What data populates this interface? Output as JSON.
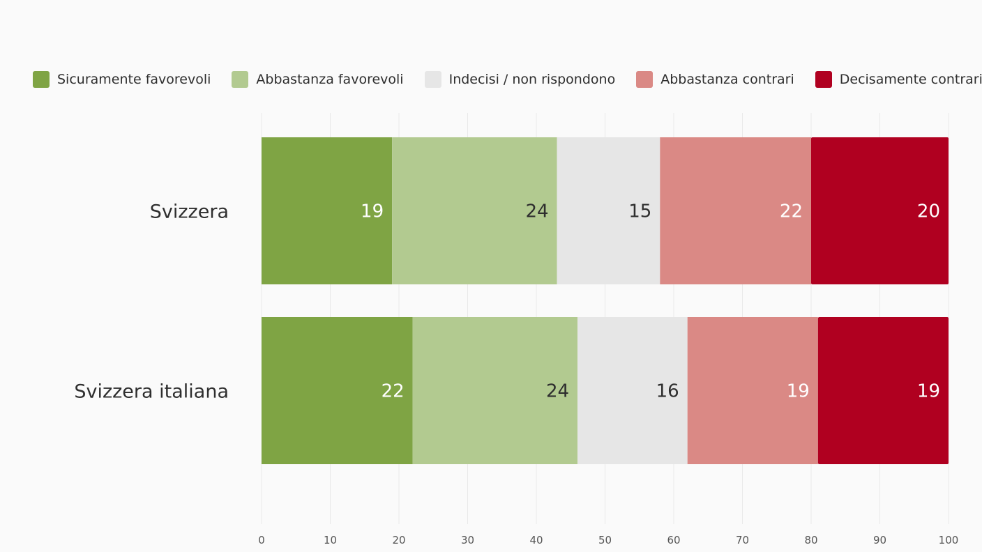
{
  "chart_data": {
    "type": "bar",
    "orientation": "horizontal",
    "stacked": true,
    "categories": [
      "Svizzera",
      "Svizzera italiana"
    ],
    "series": [
      {
        "name": "Sicuramente favorevoli",
        "color": "#7fa444",
        "label_color": "#ffffff",
        "values": [
          19,
          22
        ]
      },
      {
        "name": "Abbastanza favorevoli",
        "color": "#b2ca90",
        "label_color": "#2e2e2e",
        "values": [
          24,
          24
        ]
      },
      {
        "name": "Indecisi / non rispondono",
        "color": "#e6e6e6",
        "label_color": "#2e2e2e",
        "values": [
          15,
          16
        ]
      },
      {
        "name": "Abbastanza contrari",
        "color": "#da8985",
        "label_color": "#ffffff",
        "values": [
          22,
          19
        ]
      },
      {
        "name": "Decisamente contrari",
        "color": "#b00020",
        "label_color": "#ffffff",
        "values": [
          20,
          19
        ]
      }
    ],
    "xlim": [
      0,
      100
    ],
    "xticks": [
      0,
      10,
      20,
      30,
      40,
      50,
      60,
      70,
      80,
      90,
      100
    ],
    "legend_position": "top",
    "grid": true
  }
}
